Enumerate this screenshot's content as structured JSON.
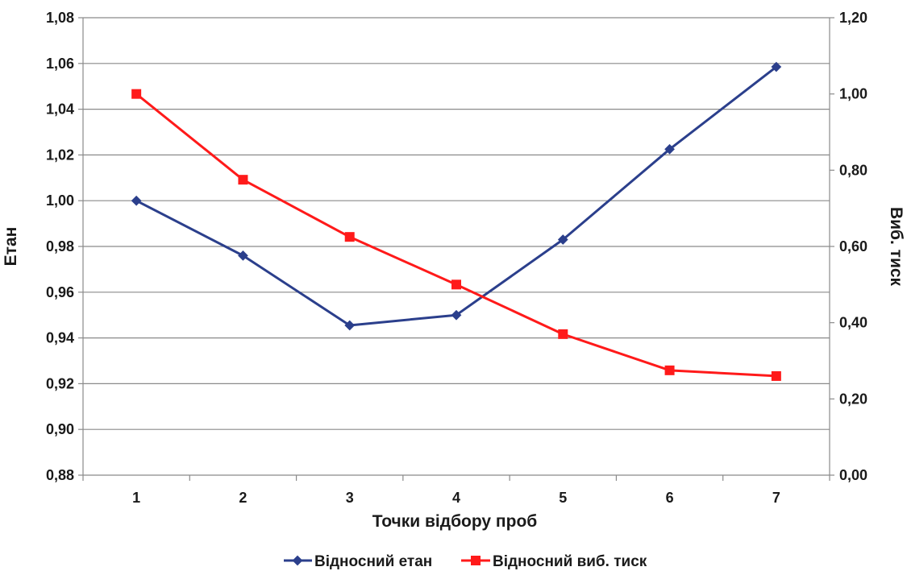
{
  "chart_data": {
    "type": "line",
    "xlabel": "Точки відбору проб",
    "ylabel_left": "Етан",
    "ylabel_right": "Виб. тиск",
    "categories": [
      "1",
      "2",
      "3",
      "4",
      "5",
      "6",
      "7"
    ],
    "y_left": {
      "lim": [
        0.88,
        1.08
      ],
      "ticks": [
        "0,88",
        "0,90",
        "0,92",
        "0,94",
        "0,96",
        "0,98",
        "1,00",
        "1,02",
        "1,04",
        "1,06",
        "1,08"
      ]
    },
    "y_right": {
      "lim": [
        0.0,
        1.2
      ],
      "ticks": [
        "0,00",
        "0,20",
        "0,40",
        "0,60",
        "0,80",
        "1,00",
        "1,20"
      ]
    },
    "grid": true,
    "legend_position": "bottom",
    "series": [
      {
        "name": "Відносний етан",
        "axis": "left",
        "color": "#2B3F8C",
        "marker": "diamond",
        "values": [
          1.0,
          0.976,
          0.9455,
          0.95,
          0.983,
          1.0225,
          1.0585
        ]
      },
      {
        "name": "Відносний виб. тиск",
        "axis": "right",
        "color": "#FF1A1A",
        "marker": "square",
        "values": [
          1.0,
          0.775,
          0.625,
          0.5,
          0.37,
          0.275,
          0.26
        ]
      }
    ]
  }
}
